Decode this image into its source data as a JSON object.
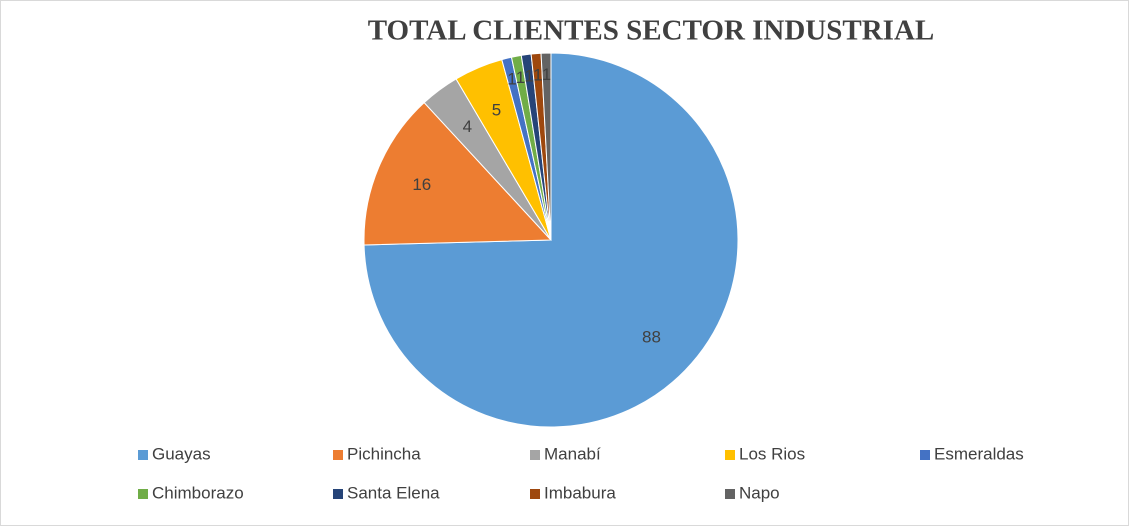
{
  "chart_data": {
    "type": "pie",
    "title": "TOTAL CLIENTES SECTOR INDUSTRIAL",
    "categories": [
      "Guayas",
      "Pichincha",
      "Manabí",
      "Los Rios",
      "Esmeraldas",
      "Chimborazo",
      "Santa Elena",
      "Imbabura",
      "Napo"
    ],
    "values": [
      88,
      16,
      4,
      5,
      1,
      1,
      1,
      1,
      1
    ],
    "colors": [
      "#5b9bd5",
      "#ed7d31",
      "#a5a5a5",
      "#ffc000",
      "#4472c4",
      "#70ad47",
      "#264478",
      "#9e480e",
      "#636363"
    ],
    "legend": "bottom"
  }
}
